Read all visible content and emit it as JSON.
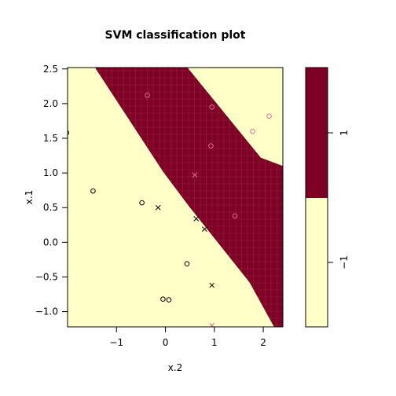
{
  "chart_data": {
    "type": "scatter",
    "title": "SVM classification plot",
    "xlabel": "x.2",
    "ylabel": "x.1",
    "xlim": [
      -2.0,
      2.4
    ],
    "ylim": [
      -1.22,
      2.52
    ],
    "x_ticks": [
      -1,
      0,
      1,
      2
    ],
    "x_tick_labels": [
      "−1",
      "0",
      "1",
      "2"
    ],
    "y_ticks": [
      -1.0,
      -0.5,
      0.0,
      0.5,
      1.0,
      1.5,
      2.0,
      2.5
    ],
    "y_tick_labels": [
      "−1.0",
      "−0.5",
      "0.0",
      "0.5",
      "1.0",
      "1.5",
      "2.0",
      "2.5"
    ],
    "grid": false,
    "regions": [
      {
        "class": "1",
        "color": "#7E0025"
      },
      {
        "class": "-1",
        "color": "#FFFFC8"
      }
    ],
    "boundary": [
      [
        0.45,
        2.52
      ],
      [
        1.95,
        1.22
      ],
      [
        2.4,
        1.1
      ],
      [
        2.4,
        -1.22
      ],
      [
        2.22,
        -1.22
      ],
      [
        1.72,
        -0.58
      ],
      [
        0.48,
        0.52
      ],
      [
        -0.05,
        1.02
      ],
      [
        -1.44,
        2.52
      ]
    ],
    "legend": {
      "labels": [
        "1",
        "−1"
      ],
      "split": 0.5
    },
    "points": [
      {
        "x": -2.02,
        "y": 1.58,
        "marker": "o",
        "class": "-1"
      },
      {
        "x": -1.48,
        "y": 0.74,
        "marker": "o",
        "class": "-1"
      },
      {
        "x": -0.48,
        "y": 0.57,
        "marker": "o",
        "class": "-1"
      },
      {
        "x": -0.15,
        "y": 0.5,
        "marker": "x",
        "class": "-1"
      },
      {
        "x": 0.63,
        "y": 0.34,
        "marker": "x",
        "class": "-1"
      },
      {
        "x": 0.8,
        "y": 0.19,
        "marker": "x",
        "class": "-1"
      },
      {
        "x": 0.44,
        "y": -0.31,
        "marker": "o",
        "class": "-1"
      },
      {
        "x": 0.95,
        "y": -0.62,
        "marker": "x",
        "class": "-1"
      },
      {
        "x": -0.05,
        "y": -0.82,
        "marker": "o",
        "class": "-1"
      },
      {
        "x": 0.07,
        "y": -0.83,
        "marker": "o",
        "class": "-1"
      },
      {
        "x": 0.95,
        "y": -1.2,
        "marker": "x",
        "class": "1"
      },
      {
        "x": -0.37,
        "y": 2.12,
        "marker": "o",
        "class": "1"
      },
      {
        "x": 0.95,
        "y": 1.95,
        "marker": "o",
        "class": "1"
      },
      {
        "x": 2.12,
        "y": 1.82,
        "marker": "o",
        "class": "1"
      },
      {
        "x": 1.78,
        "y": 1.6,
        "marker": "o",
        "class": "1"
      },
      {
        "x": 0.93,
        "y": 1.39,
        "marker": "o",
        "class": "1"
      },
      {
        "x": 0.6,
        "y": 0.97,
        "marker": "x",
        "class": "1"
      },
      {
        "x": 1.42,
        "y": 0.38,
        "marker": "o",
        "class": "1"
      }
    ],
    "colors": {
      "region_positive": "#7E0025",
      "region_negative": "#FFFFC8",
      "point_negative": "#000000",
      "point_positive": "#E0708A",
      "grid_texture": "#9E3A55"
    }
  }
}
